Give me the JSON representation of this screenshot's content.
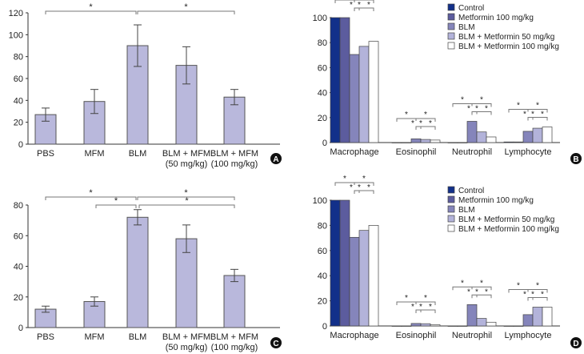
{
  "chart_data": [
    {
      "panel": "A",
      "type": "bar",
      "categories": [
        "PBS",
        "MFM",
        "BLM",
        "BLM + MFM\n(50 mg/kg)",
        "BLM + MFM\n(100 mg/kg)"
      ],
      "values": [
        27,
        39,
        90,
        72,
        43
      ],
      "errors": [
        6,
        11,
        19,
        17,
        7
      ],
      "ylim": [
        0,
        120
      ],
      "yticks": [
        0,
        20,
        40,
        60,
        80,
        100,
        120
      ],
      "significance": [
        {
          "from": 0,
          "to": 2,
          "label": "*",
          "level": 0
        },
        {
          "from": 2,
          "to": 4,
          "label": "*",
          "level": 0
        }
      ]
    },
    {
      "panel": "B",
      "type": "bar",
      "categories": [
        "Macrophage",
        "Eosinophil",
        "Neutrophil",
        "Lymphocyte"
      ],
      "series": [
        {
          "name": "Control",
          "color": "#12308a",
          "values": [
            100,
            0,
            0,
            0.5
          ]
        },
        {
          "name": "Metformin 100 mg/kg",
          "color": "#5c5c9e",
          "values": [
            100,
            0,
            0,
            0.5
          ]
        },
        {
          "name": "BLM",
          "color": "#8585bb",
          "values": [
            70.5,
            3,
            17,
            9
          ]
        },
        {
          "name": "BLM + Metformin 50 mg/kg",
          "color": "#b3b3da",
          "values": [
            77,
            2.5,
            8.5,
            11.5
          ]
        },
        {
          "name": "BLM + Metformin 100 mg/kg",
          "color": "#ffffff",
          "values": [
            81,
            2,
            4.5,
            12.5
          ]
        }
      ],
      "ylim": [
        0,
        100
      ],
      "yticks": [
        0,
        20,
        40,
        60,
        80,
        100
      ],
      "significance_label": "*"
    },
    {
      "panel": "C",
      "type": "bar",
      "categories": [
        "PBS",
        "MFM",
        "BLM",
        "BLM + MFM\n(50 mg/kg)",
        "BLM + MFM\n(100 mg/kg)"
      ],
      "values": [
        12,
        17,
        72,
        58,
        34
      ],
      "errors": [
        2,
        3,
        5,
        9,
        4
      ],
      "ylim": [
        0,
        80
      ],
      "yticks": [
        0,
        20,
        40,
        60,
        80
      ],
      "significance": [
        {
          "from": 0,
          "to": 2,
          "label": "*",
          "level": 0
        },
        {
          "from": 2,
          "to": 4,
          "label": "*",
          "level": 0
        },
        {
          "from": 1,
          "to": 2,
          "label": "*",
          "level": 1
        },
        {
          "from": 2,
          "to": 4,
          "label": "*",
          "level": 1
        }
      ]
    },
    {
      "panel": "D",
      "type": "bar",
      "categories": [
        "Macrophage",
        "Eosinophil",
        "Neutrophil",
        "Lymphocyte"
      ],
      "series": [
        {
          "name": "Control",
          "color": "#12308a",
          "values": [
            100,
            0,
            0,
            0
          ]
        },
        {
          "name": "Metformin 100 mg/kg",
          "color": "#5c5c9e",
          "values": [
            100,
            0,
            0,
            0
          ]
        },
        {
          "name": "BLM",
          "color": "#8585bb",
          "values": [
            70.5,
            2,
            17,
            9
          ]
        },
        {
          "name": "BLM + Metformin 50 mg/kg",
          "color": "#b3b3da",
          "values": [
            76,
            1.8,
            6,
            15
          ]
        },
        {
          "name": "BLM + Metformin 100 mg/kg",
          "color": "#ffffff",
          "values": [
            80,
            1,
            3,
            15
          ]
        }
      ],
      "ylim": [
        0,
        100
      ],
      "yticks": [
        0,
        20,
        40,
        60,
        80,
        100
      ],
      "significance_label": "*"
    }
  ]
}
